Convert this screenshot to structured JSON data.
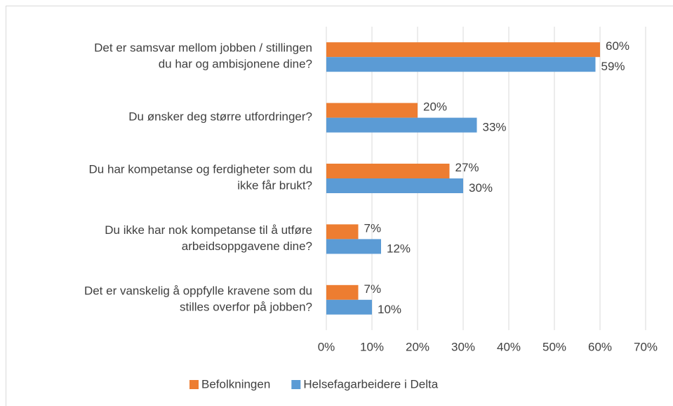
{
  "chart_data": {
    "type": "bar",
    "orientation": "horizontal",
    "categories": [
      "Det er samsvar mellom jobben / stillingen\ndu har og ambisjonene dine?",
      "Du ønsker deg større utfordringer?",
      "Du har kompetanse og ferdigheter som du\nikke får brukt?",
      "Du ikke har nok kompetanse til å utføre\narbeidsoppgavene dine?",
      "Det er vanskelig å oppfylle kravene som du\nstilles overfor på jobben?"
    ],
    "series": [
      {
        "name": "Befolkningen",
        "color": "#ed7d31",
        "values": [
          60,
          20,
          27,
          7,
          7
        ],
        "value_labels": [
          "60%",
          "20%",
          "27%",
          "7%",
          "7%"
        ]
      },
      {
        "name": "Helsefagarbeidere i Delta",
        "color": "#5b9bd5",
        "values": [
          59,
          33,
          30,
          12,
          10
        ],
        "value_labels": [
          "59%",
          "33%",
          "30%",
          "12%",
          "10%"
        ]
      }
    ],
    "xlim": [
      0,
      70
    ],
    "xticks": [
      {
        "value": 0,
        "label": "0%"
      },
      {
        "value": 10,
        "label": "10%"
      },
      {
        "value": 20,
        "label": "20%"
      },
      {
        "value": 30,
        "label": "30%"
      },
      {
        "value": 40,
        "label": "40%"
      },
      {
        "value": 50,
        "label": "50%"
      },
      {
        "value": 60,
        "label": "60%"
      },
      {
        "value": 70,
        "label": "70%"
      }
    ],
    "grid": true,
    "legend": "bottom"
  }
}
